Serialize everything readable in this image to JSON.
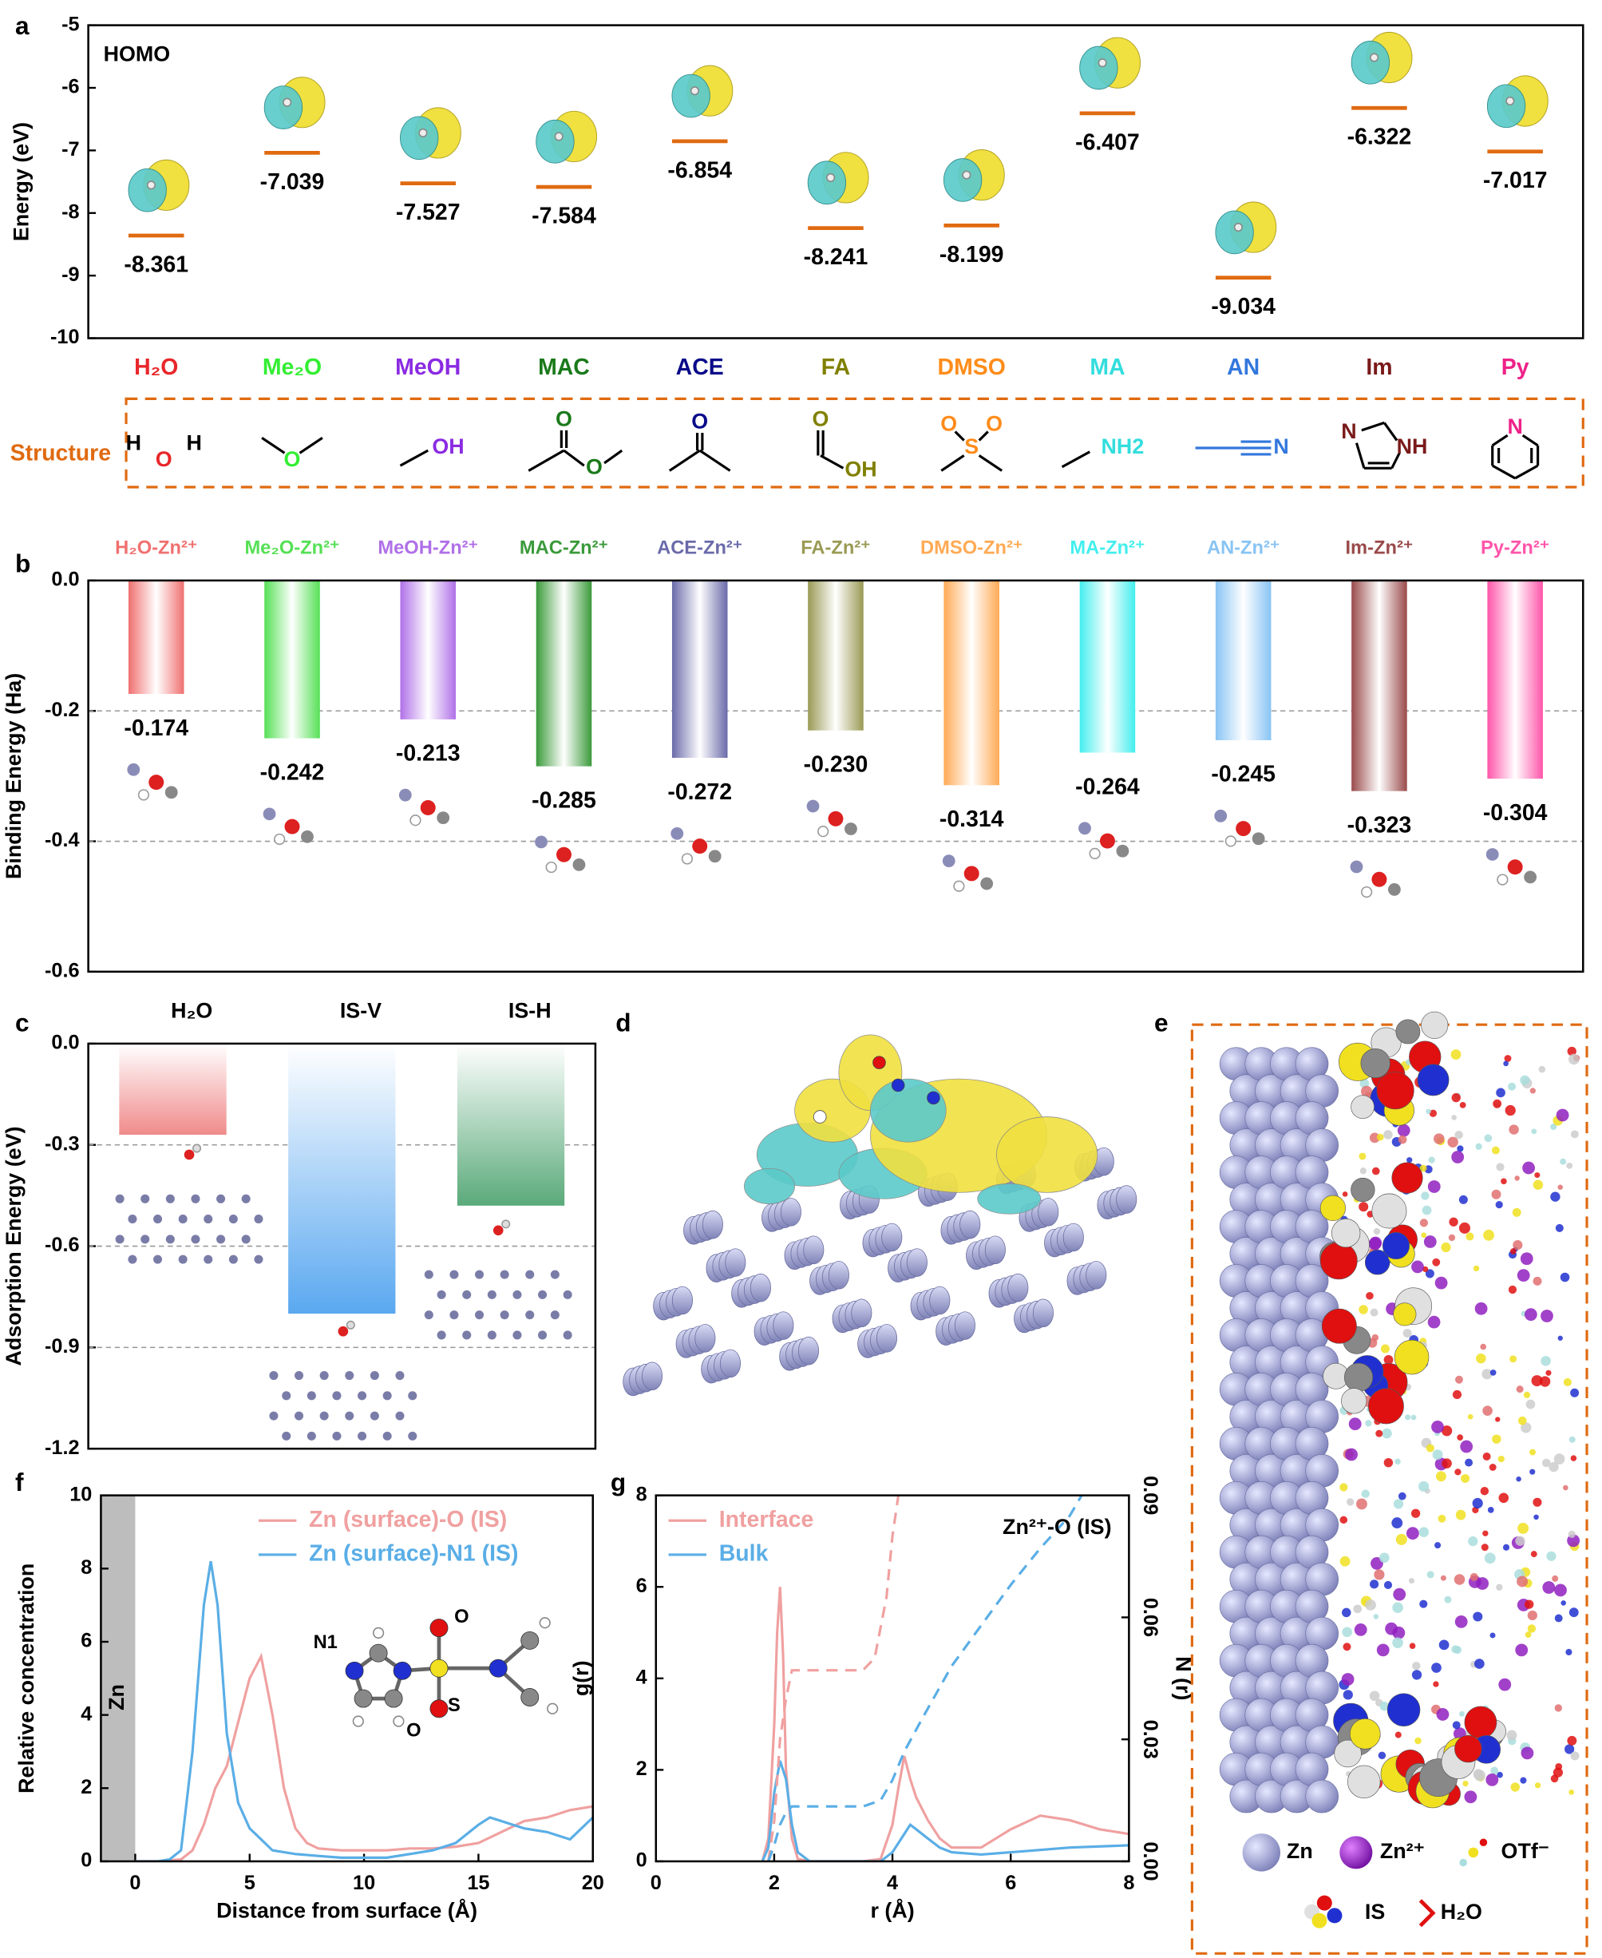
{
  "chart_data": [
    {
      "type": "level",
      "panel": "a",
      "title": "HOMO",
      "ylabel": "Energy (eV)",
      "categories": [
        "H₂O",
        "Me₂O",
        "MeOH",
        "MAC",
        "ACE",
        "FA",
        "DMSO",
        "MA",
        "AN",
        "Im",
        "Py"
      ],
      "values": [
        -8.361,
        -7.039,
        -7.527,
        -7.584,
        -6.854,
        -8.241,
        -8.199,
        -6.407,
        -9.034,
        -6.322,
        -7.017
      ],
      "colors": [
        "#e8262a",
        "#33ee33",
        "#8a2be2",
        "#1a7a1a",
        "#0a0a8a",
        "#808000",
        "#ff8c1a",
        "#33dddd",
        "#3377dd",
        "#7a1a1a",
        "#ee2288"
      ],
      "level_color": "#e06a10",
      "ylim": [
        -10,
        -5
      ],
      "yticks": [
        -10,
        -9,
        -8,
        -7,
        -6,
        -5
      ],
      "structure_label": "Structure",
      "structure_atoms": [
        [
          "H",
          "O",
          "H"
        ],
        [
          "O"
        ],
        [
          "OH"
        ],
        [
          "O",
          "O"
        ],
        [
          "O"
        ],
        [
          "O",
          "OH"
        ],
        [
          "O",
          "S",
          "O"
        ],
        [
          "NH2"
        ],
        [
          "N"
        ],
        [
          "N",
          "NH"
        ],
        [
          "N"
        ]
      ]
    },
    {
      "type": "bar",
      "panel": "b",
      "ylabel": "Binding Energy (Ha)",
      "categories": [
        "H₂O-Zn²⁺",
        "Me₂O-Zn²⁺",
        "MeOH-Zn²⁺",
        "MAC-Zn²⁺",
        "ACE-Zn²⁺",
        "FA-Zn²⁺",
        "DMSO-Zn²⁺",
        "MA-Zn²⁺",
        "AN-Zn²⁺",
        "Im-Zn²⁺",
        "Py-Zn²⁺"
      ],
      "values": [
        -0.174,
        -0.242,
        -0.213,
        -0.285,
        -0.272,
        -0.23,
        -0.314,
        -0.264,
        -0.245,
        -0.323,
        -0.304
      ],
      "value_labels": [
        "-0.174",
        "-0.242",
        "-0.213",
        "-0.285",
        "-0.272",
        "-0.230",
        "-0.314",
        "-0.264",
        "-0.245",
        "-0.323",
        "-0.304"
      ],
      "colors": [
        "#f07070",
        "#55e055",
        "#b070e8",
        "#3a9a3a",
        "#6a6aaa",
        "#9a9a55",
        "#ffaa55",
        "#44eeee",
        "#88c4f4",
        "#9a4a4a",
        "#ff55aa"
      ],
      "ylim": [
        -0.6,
        0
      ],
      "yticks": [
        {
          "value": 0,
          "label": "0.0"
        },
        -0.2,
        -0.4,
        -0.6
      ],
      "grid": true
    },
    {
      "type": "bar",
      "panel": "c",
      "ylabel": "Adsorption Energy (eV)",
      "categories": [
        "H₂O",
        "IS-V",
        "IS-H"
      ],
      "values": [
        -0.27,
        -0.8,
        -0.48
      ],
      "colors": [
        "#f08a8a",
        "#5aa8f0",
        "#5aaa7a"
      ],
      "ylim": [
        -1.2,
        0
      ],
      "yticks": [
        {
          "value": 0,
          "label": "0.0"
        },
        -0.3,
        -0.6,
        -0.9,
        -1.2
      ],
      "grid": true
    },
    {
      "type": "line",
      "panel": "f",
      "xlabel": "Distance from surface (Å)",
      "ylabel": "Relative concentration",
      "annotation": "Zn",
      "shaded_x": [
        -1.5,
        0
      ],
      "inset_labels": [
        "N1",
        "O",
        "S",
        "O"
      ],
      "xlim": [
        -1.5,
        20
      ],
      "xticks": [
        0,
        5,
        10,
        15,
        20
      ],
      "ylim": [
        0,
        10
      ],
      "yticks": [
        0,
        2,
        4,
        6,
        8,
        10
      ],
      "series": [
        {
          "name": "Zn (surface)-O (IS)",
          "color": "#f0a0a0",
          "x": [
            0,
            1,
            2,
            2.5,
            3,
            3.5,
            4,
            4.5,
            5,
            5.5,
            6,
            6.5,
            7,
            7.5,
            8,
            9,
            10,
            11,
            12,
            13,
            14,
            15,
            16,
            17,
            18,
            19,
            20
          ],
          "values": [
            0,
            0,
            0.05,
            0.3,
            1.0,
            2.0,
            2.6,
            3.8,
            5.0,
            5.6,
            4.0,
            2.0,
            0.9,
            0.5,
            0.35,
            0.3,
            0.3,
            0.3,
            0.35,
            0.35,
            0.4,
            0.5,
            0.8,
            1.1,
            1.2,
            1.4,
            1.5
          ]
        },
        {
          "name": "Zn (surface)-N1 (IS)",
          "color": "#5aaee6",
          "x": [
            0,
            1,
            1.5,
            2,
            2.5,
            3,
            3.3,
            3.6,
            4,
            4.5,
            5,
            5.5,
            6,
            7,
            8,
            9,
            10,
            11,
            12,
            13,
            14,
            15,
            15.5,
            16,
            17,
            18,
            19,
            20
          ],
          "values": [
            0,
            0,
            0.05,
            0.3,
            3.0,
            7.0,
            8.2,
            7.0,
            3.5,
            1.6,
            0.9,
            0.6,
            0.3,
            0.2,
            0.15,
            0.1,
            0.1,
            0.1,
            0.2,
            0.3,
            0.5,
            1.0,
            1.2,
            1.1,
            0.9,
            0.8,
            0.6,
            1.2
          ]
        }
      ]
    },
    {
      "type": "line",
      "panel": "g",
      "xlabel": "r (Å)",
      "ylabel": "g(r)",
      "y2label": "N (r)",
      "annotation": "Zn²⁺-O (IS)",
      "xlim": [
        0,
        8
      ],
      "xticks": [
        0,
        2,
        4,
        6,
        8
      ],
      "ylim": [
        0,
        8
      ],
      "yticks": [
        0,
        2,
        4,
        6,
        8
      ],
      "y2lim": [
        0,
        0.09
      ],
      "y2ticks": [
        {
          "value": 0,
          "label": "0.00"
        },
        {
          "value": 0.03,
          "label": "0.03"
        },
        {
          "value": 0.06,
          "label": "0.06"
        },
        {
          "value": 0.09,
          "label": "0.09"
        }
      ],
      "series": [
        {
          "name": "Interface",
          "color": "#f0a0a0",
          "x": [
            1.8,
            1.9,
            2.0,
            2.05,
            2.1,
            2.15,
            2.2,
            2.3,
            2.4,
            2.6,
            3.5,
            3.8,
            4.0,
            4.1,
            4.2,
            4.3,
            4.4,
            4.6,
            4.8,
            5.0,
            5.5,
            6,
            6.5,
            7,
            7.5,
            8
          ],
          "values": [
            0,
            0.5,
            3,
            5.0,
            6.0,
            4.5,
            2,
            0.5,
            0.05,
            0,
            0,
            0.05,
            0.8,
            1.6,
            2.3,
            1.8,
            1.4,
            0.9,
            0.5,
            0.3,
            0.3,
            0.7,
            1.0,
            0.9,
            0.7,
            0.6
          ]
        },
        {
          "name": "Bulk",
          "color": "#5aaee6",
          "x": [
            1.8,
            1.9,
            2.0,
            2.1,
            2.2,
            2.3,
            2.4,
            2.6,
            3.8,
            4.0,
            4.2,
            4.3,
            4.4,
            4.6,
            4.8,
            5.0,
            5.5,
            6,
            7,
            8
          ],
          "values": [
            0,
            0.3,
            1.5,
            2.2,
            1.8,
            0.8,
            0.2,
            0,
            0,
            0.2,
            0.6,
            0.8,
            0.7,
            0.5,
            0.3,
            0.2,
            0.15,
            0.2,
            0.3,
            0.35
          ]
        },
        {
          "color": "#f0a0a0",
          "axis": "y2",
          "dash": true,
          "x": [
            1.9,
            2.0,
            2.1,
            2.2,
            2.3,
            3.0,
            3.5,
            3.7,
            3.9,
            4.0,
            4.1
          ],
          "values": [
            0,
            0.01,
            0.03,
            0.04,
            0.047,
            0.047,
            0.047,
            0.05,
            0.065,
            0.08,
            0.09
          ]
        },
        {
          "color": "#5aaee6",
          "axis": "y2",
          "dash": true,
          "x": [
            1.9,
            2.0,
            2.1,
            2.2,
            2.3,
            3.0,
            3.5,
            3.8,
            4.0,
            4.2,
            4.5,
            5.0,
            5.5,
            6.0,
            6.5,
            7.0,
            7.2
          ],
          "values": [
            0,
            0.004,
            0.009,
            0.012,
            0.0135,
            0.0135,
            0.0135,
            0.015,
            0.02,
            0.027,
            0.035,
            0.048,
            0.058,
            0.068,
            0.077,
            0.085,
            0.09
          ]
        }
      ]
    }
  ],
  "figures": [
    {
      "panel": "d"
    },
    {
      "panel": "e",
      "legend": [
        "Zn",
        "Zn²⁺",
        "OTf⁻",
        "IS",
        "H₂O"
      ]
    }
  ]
}
